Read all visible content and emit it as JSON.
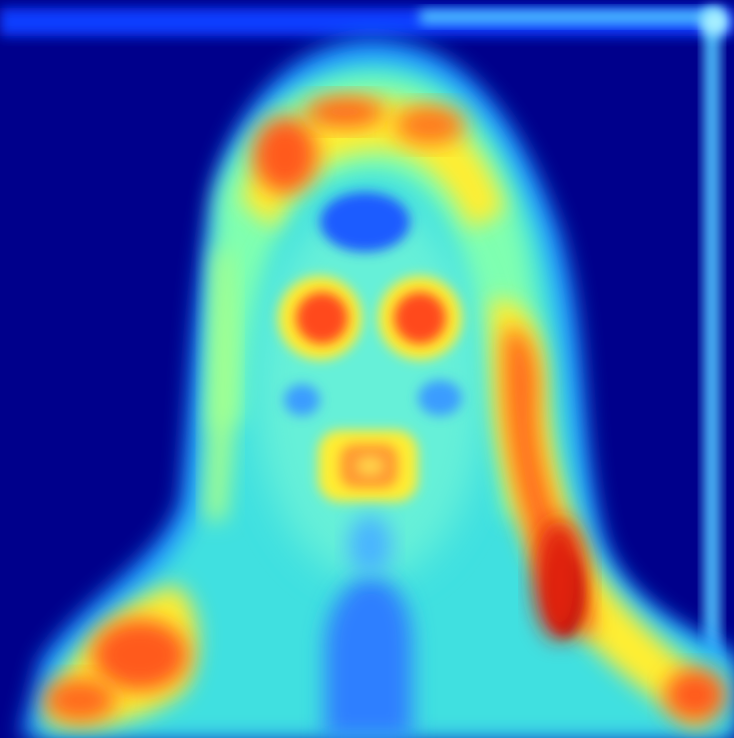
{
  "image": {
    "kind": "jet-colormap saliency heatmap of a portrait",
    "colormap": [
      "#00008b",
      "#0000ff",
      "#0080ff",
      "#33ccff",
      "#66ffcc",
      "#ccff66",
      "#ffff33",
      "#ff9900",
      "#ff3300",
      "#8b0000"
    ],
    "background_color": "#00008b"
  }
}
